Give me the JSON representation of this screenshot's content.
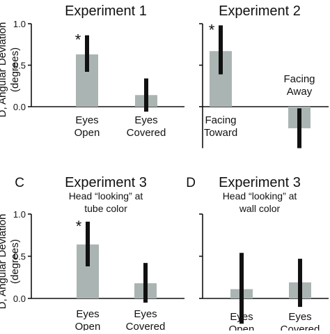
{
  "ylabel_line1": "D, Angular Deviation",
  "ylabel_line2": "(degrees)",
  "bar_color": "#aab4b3",
  "error_color": "#111111",
  "axis_color": "#111111",
  "chart_data": [
    {
      "type": "bar",
      "panel_letter": "",
      "title": "Experiment 1",
      "subtitle": [],
      "ylim": [
        0,
        1.0
      ],
      "yticks": [
        "0.0",
        "0.5",
        "1.0"
      ],
      "show_yticklabels": true,
      "categories": [
        "Eyes\nOpen",
        "Eyes\nCovered"
      ],
      "values": [
        0.63,
        0.14
      ],
      "error_low": [
        0.42,
        -0.06
      ],
      "error_high": [
        0.86,
        0.34
      ],
      "significance": [
        "*",
        ""
      ]
    },
    {
      "type": "bar",
      "panel_letter": "",
      "title": "Experiment 2",
      "subtitle": [],
      "ylim": [
        -0.5,
        1.0
      ],
      "yticks": [
        "0.0",
        "0.5",
        "1.0"
      ],
      "show_yticklabels": false,
      "categories": [
        "Facing\nToward",
        "Facing\nAway"
      ],
      "values": [
        0.67,
        -0.26
      ],
      "error_low": [
        0.39,
        -0.5
      ],
      "error_high": [
        0.98,
        -0.02
      ],
      "significance": [
        "*",
        ""
      ]
    },
    {
      "type": "bar",
      "panel_letter": "C",
      "title": "Experiment 3",
      "subtitle": [
        "Head “looking” at",
        "tube color"
      ],
      "ylim": [
        0,
        1.0
      ],
      "yticks": [
        "0.0",
        "0.5",
        "1.0"
      ],
      "show_yticklabels": true,
      "categories": [
        "Eyes\nOpen",
        "Eyes\nCovered"
      ],
      "values": [
        0.64,
        0.18
      ],
      "error_low": [
        0.38,
        -0.05
      ],
      "error_high": [
        0.91,
        0.42
      ],
      "significance": [
        "*",
        ""
      ]
    },
    {
      "type": "bar",
      "panel_letter": "D",
      "title": "Experiment 3",
      "subtitle": [
        "Head “looking” at",
        "wall color"
      ],
      "ylim": [
        0,
        1.0
      ],
      "yticks": [
        "0.0",
        "0.5",
        "1.0"
      ],
      "show_yticklabels": false,
      "categories": [
        "Eyes\nOpen",
        "Eyes\nCovered"
      ],
      "values": [
        0.11,
        0.19
      ],
      "error_low": [
        -0.3,
        -0.1
      ],
      "error_high": [
        0.54,
        0.47
      ],
      "significance": [
        "",
        ""
      ]
    }
  ]
}
